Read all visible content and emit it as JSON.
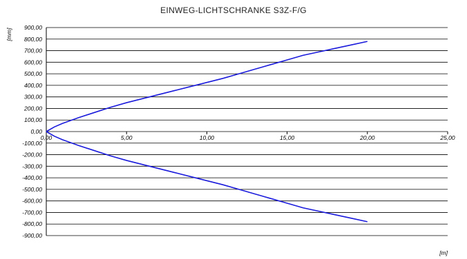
{
  "chart_data": {
    "type": "line",
    "title": "EINWEG-LICHTSCHRANKE S3Z-F/G",
    "xlabel": "[m]",
    "ylabel": "[mm]",
    "xlim": [
      0,
      25
    ],
    "ylim": [
      -900,
      900
    ],
    "x_ticks": [
      "0,00",
      "5,00",
      "10,00",
      "15,00",
      "20,00",
      "25,00"
    ],
    "y_ticks": [
      "900,00",
      "800,00",
      "700,00",
      "600,00",
      "500,00",
      "400,00",
      "300,00",
      "200,00",
      "100,00",
      "0,00",
      "-100,00",
      "-200,00",
      "-300,00",
      "-400,00",
      "-500,00",
      "-600,00",
      "-700,00",
      "-800,00",
      "-900,00"
    ],
    "grid": true,
    "series": [
      {
        "x": [
          0,
          0.5,
          1,
          2,
          3,
          4,
          5,
          6,
          7,
          8,
          9,
          10,
          11,
          12,
          13,
          14,
          15,
          16,
          17,
          18,
          19,
          20
        ],
        "y": [
          0,
          40,
          70,
          120,
          165,
          210,
          250,
          285,
          320,
          355,
          390,
          425,
          460,
          500,
          540,
          580,
          620,
          660,
          690,
          720,
          750,
          780
        ],
        "color": "#1a1adc"
      },
      {
        "x": [
          0,
          0.5,
          1,
          2,
          3,
          4,
          5,
          6,
          7,
          8,
          9,
          10,
          11,
          12,
          13,
          14,
          15,
          16,
          17,
          18,
          19,
          20
        ],
        "y": [
          0,
          -40,
          -70,
          -120,
          -165,
          -210,
          -250,
          -285,
          -320,
          -355,
          -390,
          -425,
          -460,
          -500,
          -540,
          -580,
          -620,
          -660,
          -690,
          -720,
          -750,
          -780
        ],
        "color": "#1a1adc"
      }
    ]
  }
}
